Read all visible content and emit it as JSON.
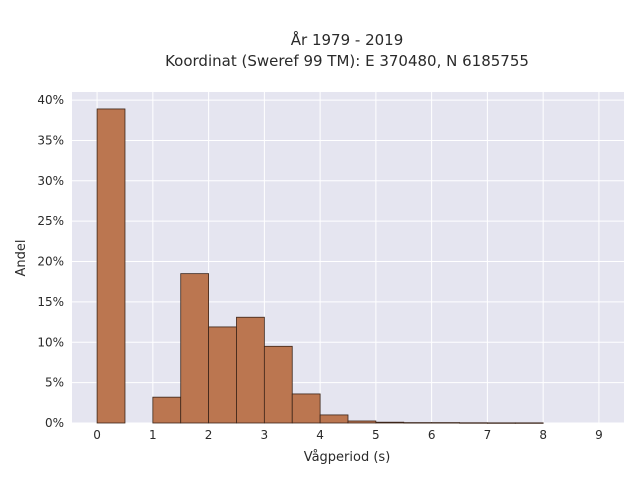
{
  "chart_data": {
    "type": "bar",
    "title_lines": [
      "År 1979 - 2019",
      "Koordinat (Sweref 99 TM): E 370480, N 6185755"
    ],
    "xlabel": "Vågperiod (s)",
    "ylabel": "Andel",
    "x_ticks": [
      "0",
      "1",
      "2",
      "3",
      "4",
      "5",
      "6",
      "7",
      "8",
      "9"
    ],
    "y_ticks": [
      "0%",
      "5%",
      "10%",
      "15%",
      "20%",
      "25%",
      "30%",
      "35%",
      "40%"
    ],
    "xlim": [
      -0.45,
      9.45
    ],
    "ylim": [
      0,
      41
    ],
    "bin_width": 0.5,
    "bins": [
      {
        "x_start": 0.0,
        "value": 38.9
      },
      {
        "x_start": 1.0,
        "value": 3.2
      },
      {
        "x_start": 1.5,
        "value": 18.5
      },
      {
        "x_start": 2.0,
        "value": 11.9
      },
      {
        "x_start": 2.5,
        "value": 13.1
      },
      {
        "x_start": 3.0,
        "value": 9.5
      },
      {
        "x_start": 3.5,
        "value": 3.6
      },
      {
        "x_start": 4.0,
        "value": 1.0
      },
      {
        "x_start": 4.5,
        "value": 0.25
      },
      {
        "x_start": 5.0,
        "value": 0.1
      },
      {
        "x_start": 5.5,
        "value": 0.05
      },
      {
        "x_start": 6.0,
        "value": 0.05
      },
      {
        "x_start": 6.5,
        "value": 0.03
      },
      {
        "x_start": 7.0,
        "value": 0.02
      },
      {
        "x_start": 7.5,
        "value": 0.02
      }
    ],
    "grid": true,
    "colors": {
      "bar_fill": "#bb7650",
      "bar_stroke": "#3b2418",
      "plot_bg": "#e5e5f0",
      "grid": "#ffffff"
    }
  }
}
